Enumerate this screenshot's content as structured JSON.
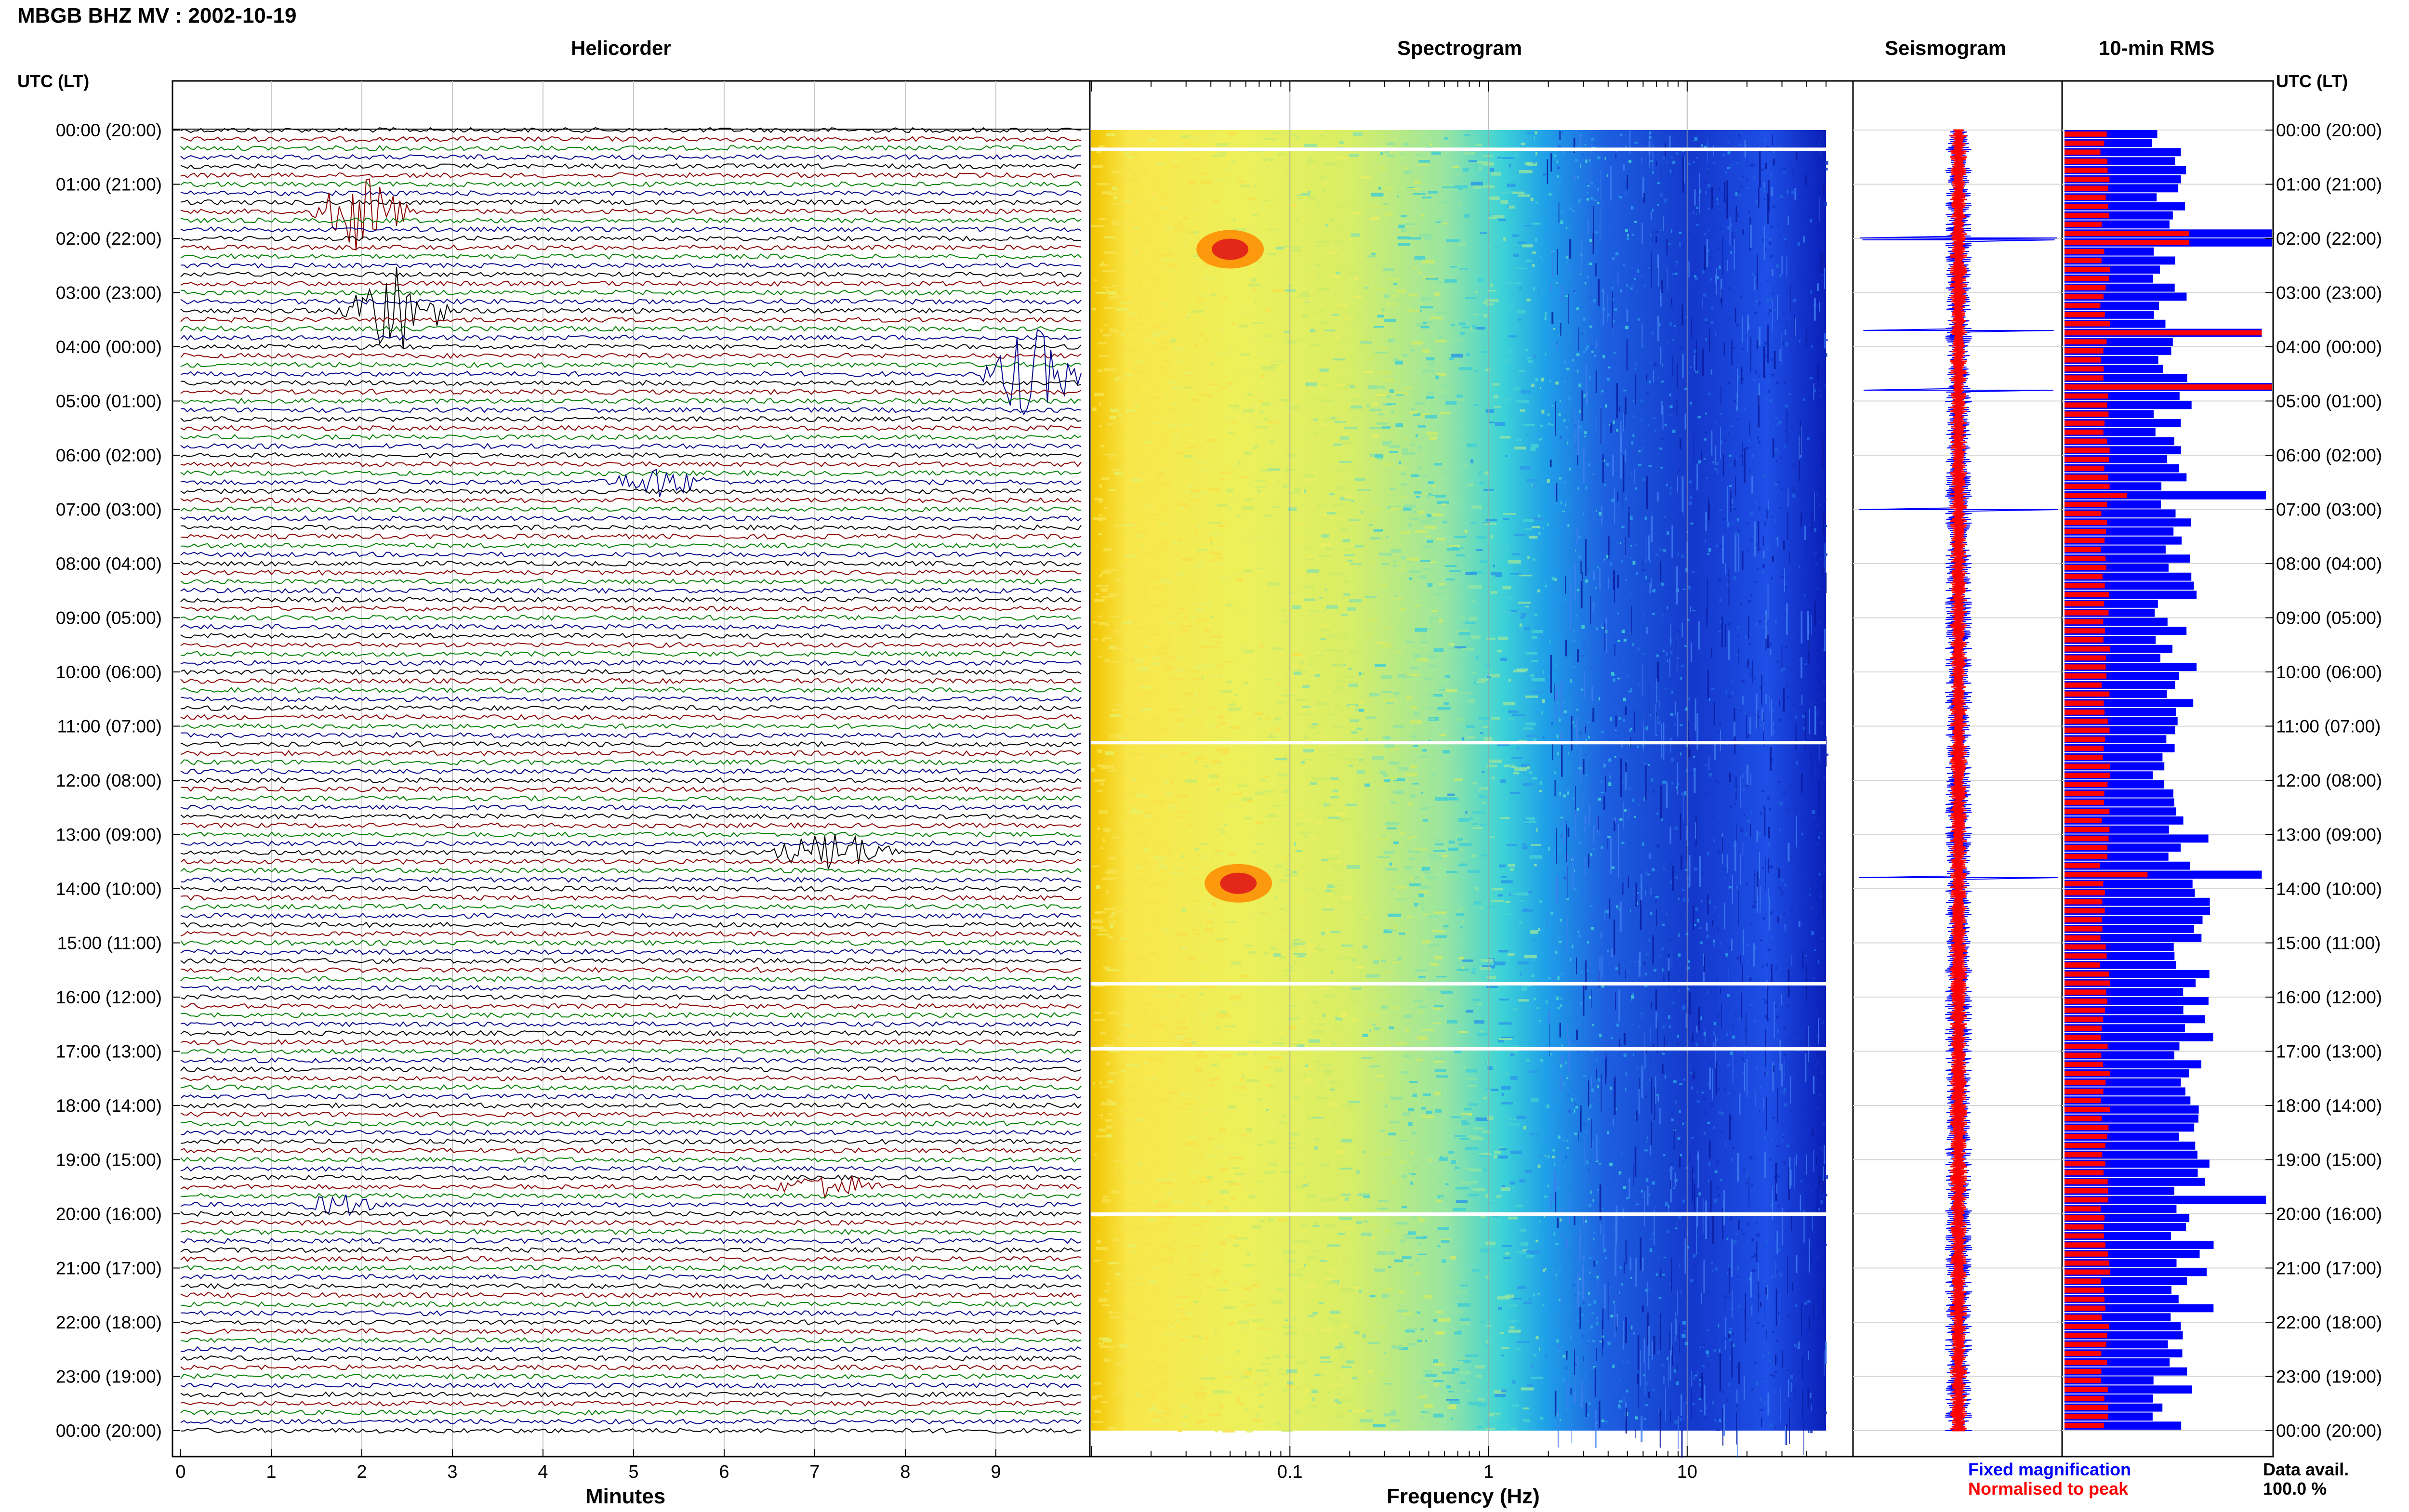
{
  "page_title": "MBGB BHZ MV : 2002-10-19",
  "panel_titles": {
    "helicorder": "Helicorder",
    "spectrogram": "Spectrogram",
    "seismogram": "Seismogram",
    "rms": "10-min RMS"
  },
  "time_axis_label_left": "UTC (LT)",
  "time_axis_label_right": "UTC (LT)",
  "legend": {
    "fixed": "Fixed magnification",
    "normalised": "Normalised to peak"
  },
  "data_availability": {
    "label": "Data avail.",
    "value": "100.0 %"
  },
  "colors": {
    "fixed": "#0000ff",
    "normalised": "#ff0000",
    "trace_cycle": [
      "#000000",
      "#8b0000",
      "#008000",
      "#00008b"
    ]
  },
  "chart_data": [
    {
      "type": "line",
      "title": "Helicorder",
      "xlabel": "Minutes",
      "x_ticks": [
        "0",
        "1",
        "2",
        "3",
        "4",
        "5",
        "6",
        "7",
        "8",
        "9"
      ],
      "xlim": [
        0,
        10
      ],
      "y_ticks": [
        "00:00 (20:00)",
        "01:00 (21:00)",
        "02:00 (22:00)",
        "03:00 (23:00)",
        "04:00 (00:00)",
        "05:00 (01:00)",
        "06:00 (02:00)",
        "07:00 (03:00)",
        "08:00 (04:00)",
        "09:00 (05:00)",
        "10:00 (06:00)",
        "11:00 (07:00)",
        "12:00 (08:00)",
        "13:00 (09:00)",
        "14:00 (10:00)",
        "15:00 (11:00)",
        "16:00 (12:00)",
        "17:00 (13:00)",
        "18:00 (14:00)",
        "19:00 (15:00)",
        "20:00 (16:00)",
        "21:00 (17:00)",
        "22:00 (18:00)",
        "23:00 (19:00)",
        "00:00 (20:00)"
      ],
      "rows_per_hour": 6,
      "line_minutes": 10,
      "events": [
        {
          "hour": 1.5,
          "start_min": 1.4,
          "end_min": 2.6,
          "amplitude": 3
        },
        {
          "hour": 3.3,
          "start_min": 1.7,
          "end_min": 3.0,
          "amplitude": 3.5
        },
        {
          "hour": 4.5,
          "start_min": 8.8,
          "end_min": 10.0,
          "amplitude": 3.5
        },
        {
          "hour": 6.5,
          "start_min": 4.6,
          "end_min": 6.0,
          "amplitude": 1
        },
        {
          "hour": 13.4,
          "start_min": 6.4,
          "end_min": 8.0,
          "amplitude": 1.5
        },
        {
          "hour": 19.5,
          "start_min": 6.5,
          "end_min": 7.8,
          "amplitude": 1
        },
        {
          "hour": 19.9,
          "start_min": 1.3,
          "end_min": 2.2,
          "amplitude": 0.8
        }
      ]
    },
    {
      "type": "heatmap",
      "title": "Spectrogram",
      "xlabel": "Frequency (Hz)",
      "x_scale": "log",
      "xlim": [
        0.01,
        50
      ],
      "x_ticks": [
        "0.1",
        "1",
        "10"
      ],
      "gaps_hours": [
        0.35,
        11.3,
        15.75,
        16.95,
        20.0
      ],
      "hot_spots": [
        {
          "hour": 2.2,
          "freq_hz": 0.05
        },
        {
          "hour": 13.9,
          "freq_hz": 0.055
        }
      ]
    },
    {
      "type": "line",
      "title": "Seismogram",
      "series": [
        {
          "name": "Fixed magnification",
          "color": "#0000ff"
        },
        {
          "name": "Normalised to peak",
          "color": "#ff0000"
        }
      ],
      "spikes_hours": [
        2.0,
        3.7,
        4.8,
        7.0,
        13.8
      ]
    },
    {
      "type": "bar",
      "title": "10-min RMS",
      "orientation": "horizontal",
      "bins_per_hour": 6,
      "series": [
        {
          "name": "Fixed magnification",
          "color": "#0000ff"
        },
        {
          "name": "Normalised to peak",
          "color": "#ff0000"
        }
      ],
      "peaks": [
        {
          "hour": 2.0,
          "fixed": 1.0,
          "normalised": 0.6
        },
        {
          "hour": 3.8,
          "fixed": 0.95,
          "normalised": 0.95
        },
        {
          "hour": 4.7,
          "fixed": 1.0,
          "normalised": 1.0
        },
        {
          "hour": 6.8,
          "fixed": 0.97,
          "normalised": 0.3
        },
        {
          "hour": 13.8,
          "fixed": 0.95,
          "normalised": 0.4
        },
        {
          "hour": 19.8,
          "fixed": 0.97,
          "normalised": 0.15
        }
      ]
    }
  ]
}
